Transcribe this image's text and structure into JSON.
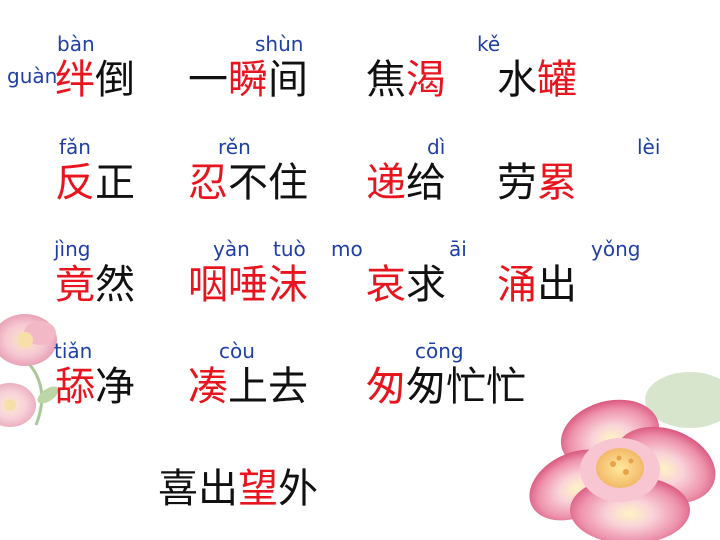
{
  "colors": {
    "pinyin": "#1f3fa6",
    "text": "#111111",
    "highlight": "#e8141e"
  },
  "pinyin": {
    "ban": "bàn",
    "guan": "guàn",
    "shun": "shùn",
    "ke": "kě",
    "fan": "fǎn",
    "ren": "rěn",
    "di": "dì",
    "lei": "lèi",
    "jing": "jìng",
    "yan": "yàn",
    "tuo": "tuò",
    "mo": "mo",
    "ai": "āi",
    "yong": "yǒng",
    "tian": "tiǎn",
    "cou": "còu",
    "cong": "cōng"
  },
  "rows": [
    [
      {
        "id": "bandao",
        "parts": [
          {
            "t": "绊",
            "hl": true
          },
          {
            "t": "倒",
            "hl": false
          }
        ]
      },
      {
        "id": "yishunjian",
        "parts": [
          {
            "t": "一",
            "hl": false
          },
          {
            "t": "瞬",
            "hl": true
          },
          {
            "t": "间",
            "hl": false
          }
        ]
      },
      {
        "id": "jiaoke",
        "parts": [
          {
            "t": "焦",
            "hl": false
          },
          {
            "t": "渴",
            "hl": true
          }
        ]
      },
      {
        "id": "shuiguan",
        "parts": [
          {
            "t": "水",
            "hl": false
          },
          {
            "t": "罐",
            "hl": true
          }
        ]
      }
    ],
    [
      {
        "id": "fanzheng",
        "parts": [
          {
            "t": "反",
            "hl": true
          },
          {
            "t": "正",
            "hl": false
          }
        ]
      },
      {
        "id": "renbuzhu",
        "parts": [
          {
            "t": "忍",
            "hl": true
          },
          {
            "t": "不住",
            "hl": false
          }
        ]
      },
      {
        "id": "digei",
        "parts": [
          {
            "t": "递",
            "hl": true
          },
          {
            "t": "给",
            "hl": false
          }
        ]
      },
      {
        "id": "laolei",
        "parts": [
          {
            "t": "劳",
            "hl": false
          },
          {
            "t": "累",
            "hl": true
          }
        ]
      }
    ],
    [
      {
        "id": "jingran",
        "parts": [
          {
            "t": "竟",
            "hl": true
          },
          {
            "t": "然",
            "hl": false
          }
        ]
      },
      {
        "id": "yantuomo",
        "parts": [
          {
            "t": "咽唾沫",
            "hl": true
          }
        ]
      },
      {
        "id": "aiqiu",
        "parts": [
          {
            "t": "哀",
            "hl": true
          },
          {
            "t": "求",
            "hl": false
          }
        ]
      },
      {
        "id": "yongchu",
        "parts": [
          {
            "t": "涌",
            "hl": true
          },
          {
            "t": "出",
            "hl": false
          }
        ]
      }
    ],
    [
      {
        "id": "tianjing",
        "parts": [
          {
            "t": "舔",
            "hl": true
          },
          {
            "t": "净",
            "hl": false
          }
        ]
      },
      {
        "id": "coushangqu",
        "parts": [
          {
            "t": "凑",
            "hl": true
          },
          {
            "t": "上去",
            "hl": false
          }
        ]
      },
      {
        "id": "congcongmangmang",
        "parts": [
          {
            "t": "匆",
            "hl": true
          },
          {
            "t": "匆忙忙",
            "hl": false
          }
        ]
      }
    ],
    [
      {
        "id": "xichuwangwai",
        "parts": [
          {
            "t": "喜出",
            "hl": false
          },
          {
            "t": "望",
            "hl": true
          },
          {
            "t": "外",
            "hl": false
          }
        ]
      }
    ]
  ]
}
